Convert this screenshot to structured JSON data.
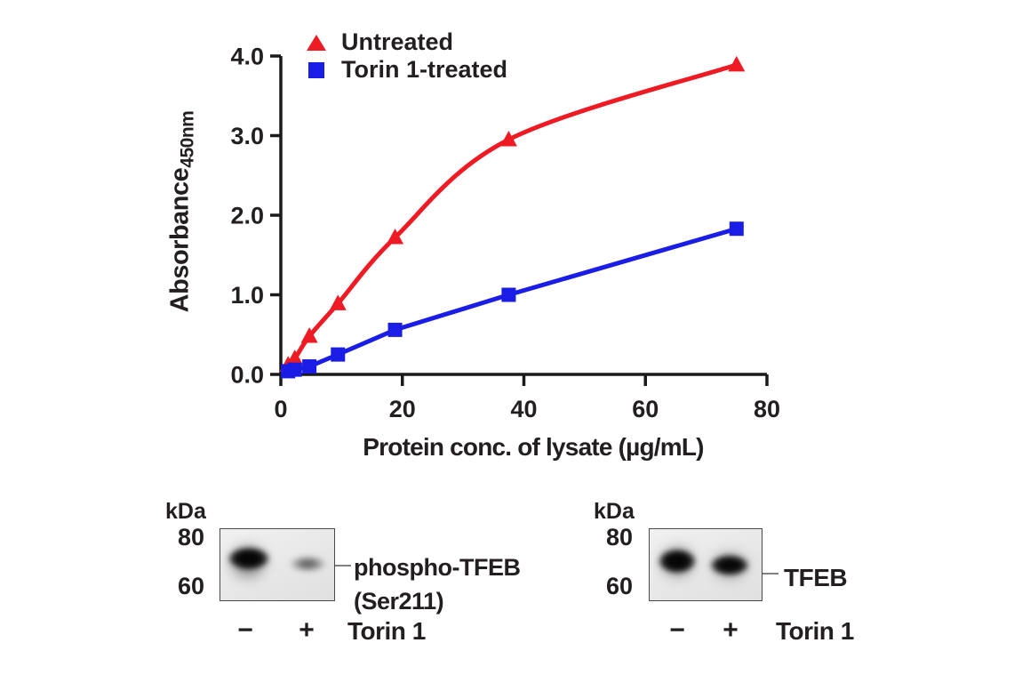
{
  "chart_data": {
    "type": "line",
    "title": "",
    "xlabel": "Protein conc. of lysate (µg/mL)",
    "ylabel": "Absorbance",
    "ylabel_subscript": "450nm",
    "xlim": [
      0,
      80
    ],
    "ylim": [
      0,
      4
    ],
    "xticks": [
      0,
      20,
      40,
      60,
      80
    ],
    "xtick_labels": [
      "0",
      "20",
      "40",
      "60",
      "80"
    ],
    "yticks": [
      0,
      1,
      2,
      3,
      4
    ],
    "ytick_labels": [
      "0.0",
      "1.0",
      "2.0",
      "3.0",
      "4.0"
    ],
    "grid": false,
    "legend_position": "top-left-inside",
    "x": [
      1.2,
      2.3,
      4.7,
      9.4,
      18.8,
      37.5,
      75
    ],
    "series": [
      {
        "name": "Untreated",
        "marker": "triangle",
        "color": "#ee1b24",
        "smooth": true,
        "values": [
          0.12,
          0.2,
          0.48,
          0.89,
          1.72,
          2.95,
          3.89
        ]
      },
      {
        "name": "Torin 1-treated",
        "marker": "square",
        "color": "#1a1de6",
        "smooth": false,
        "values": [
          0.04,
          0.06,
          0.1,
          0.25,
          0.56,
          1.0,
          1.83
        ]
      }
    ]
  },
  "blots": {
    "left": {
      "kda_label": "kDa",
      "mw_markers": [
        "80",
        "60"
      ],
      "target_label_line1": "phospho-TFEB",
      "target_label_line2": "(Ser211)",
      "lane_signs": [
        "−",
        "+"
      ],
      "treatment_label": "Torin 1"
    },
    "right": {
      "kda_label": "kDa",
      "mw_markers": [
        "80",
        "60"
      ],
      "target_label_line1": "TFEB",
      "lane_signs": [
        "−",
        "+"
      ],
      "treatment_label": "Torin 1"
    }
  }
}
